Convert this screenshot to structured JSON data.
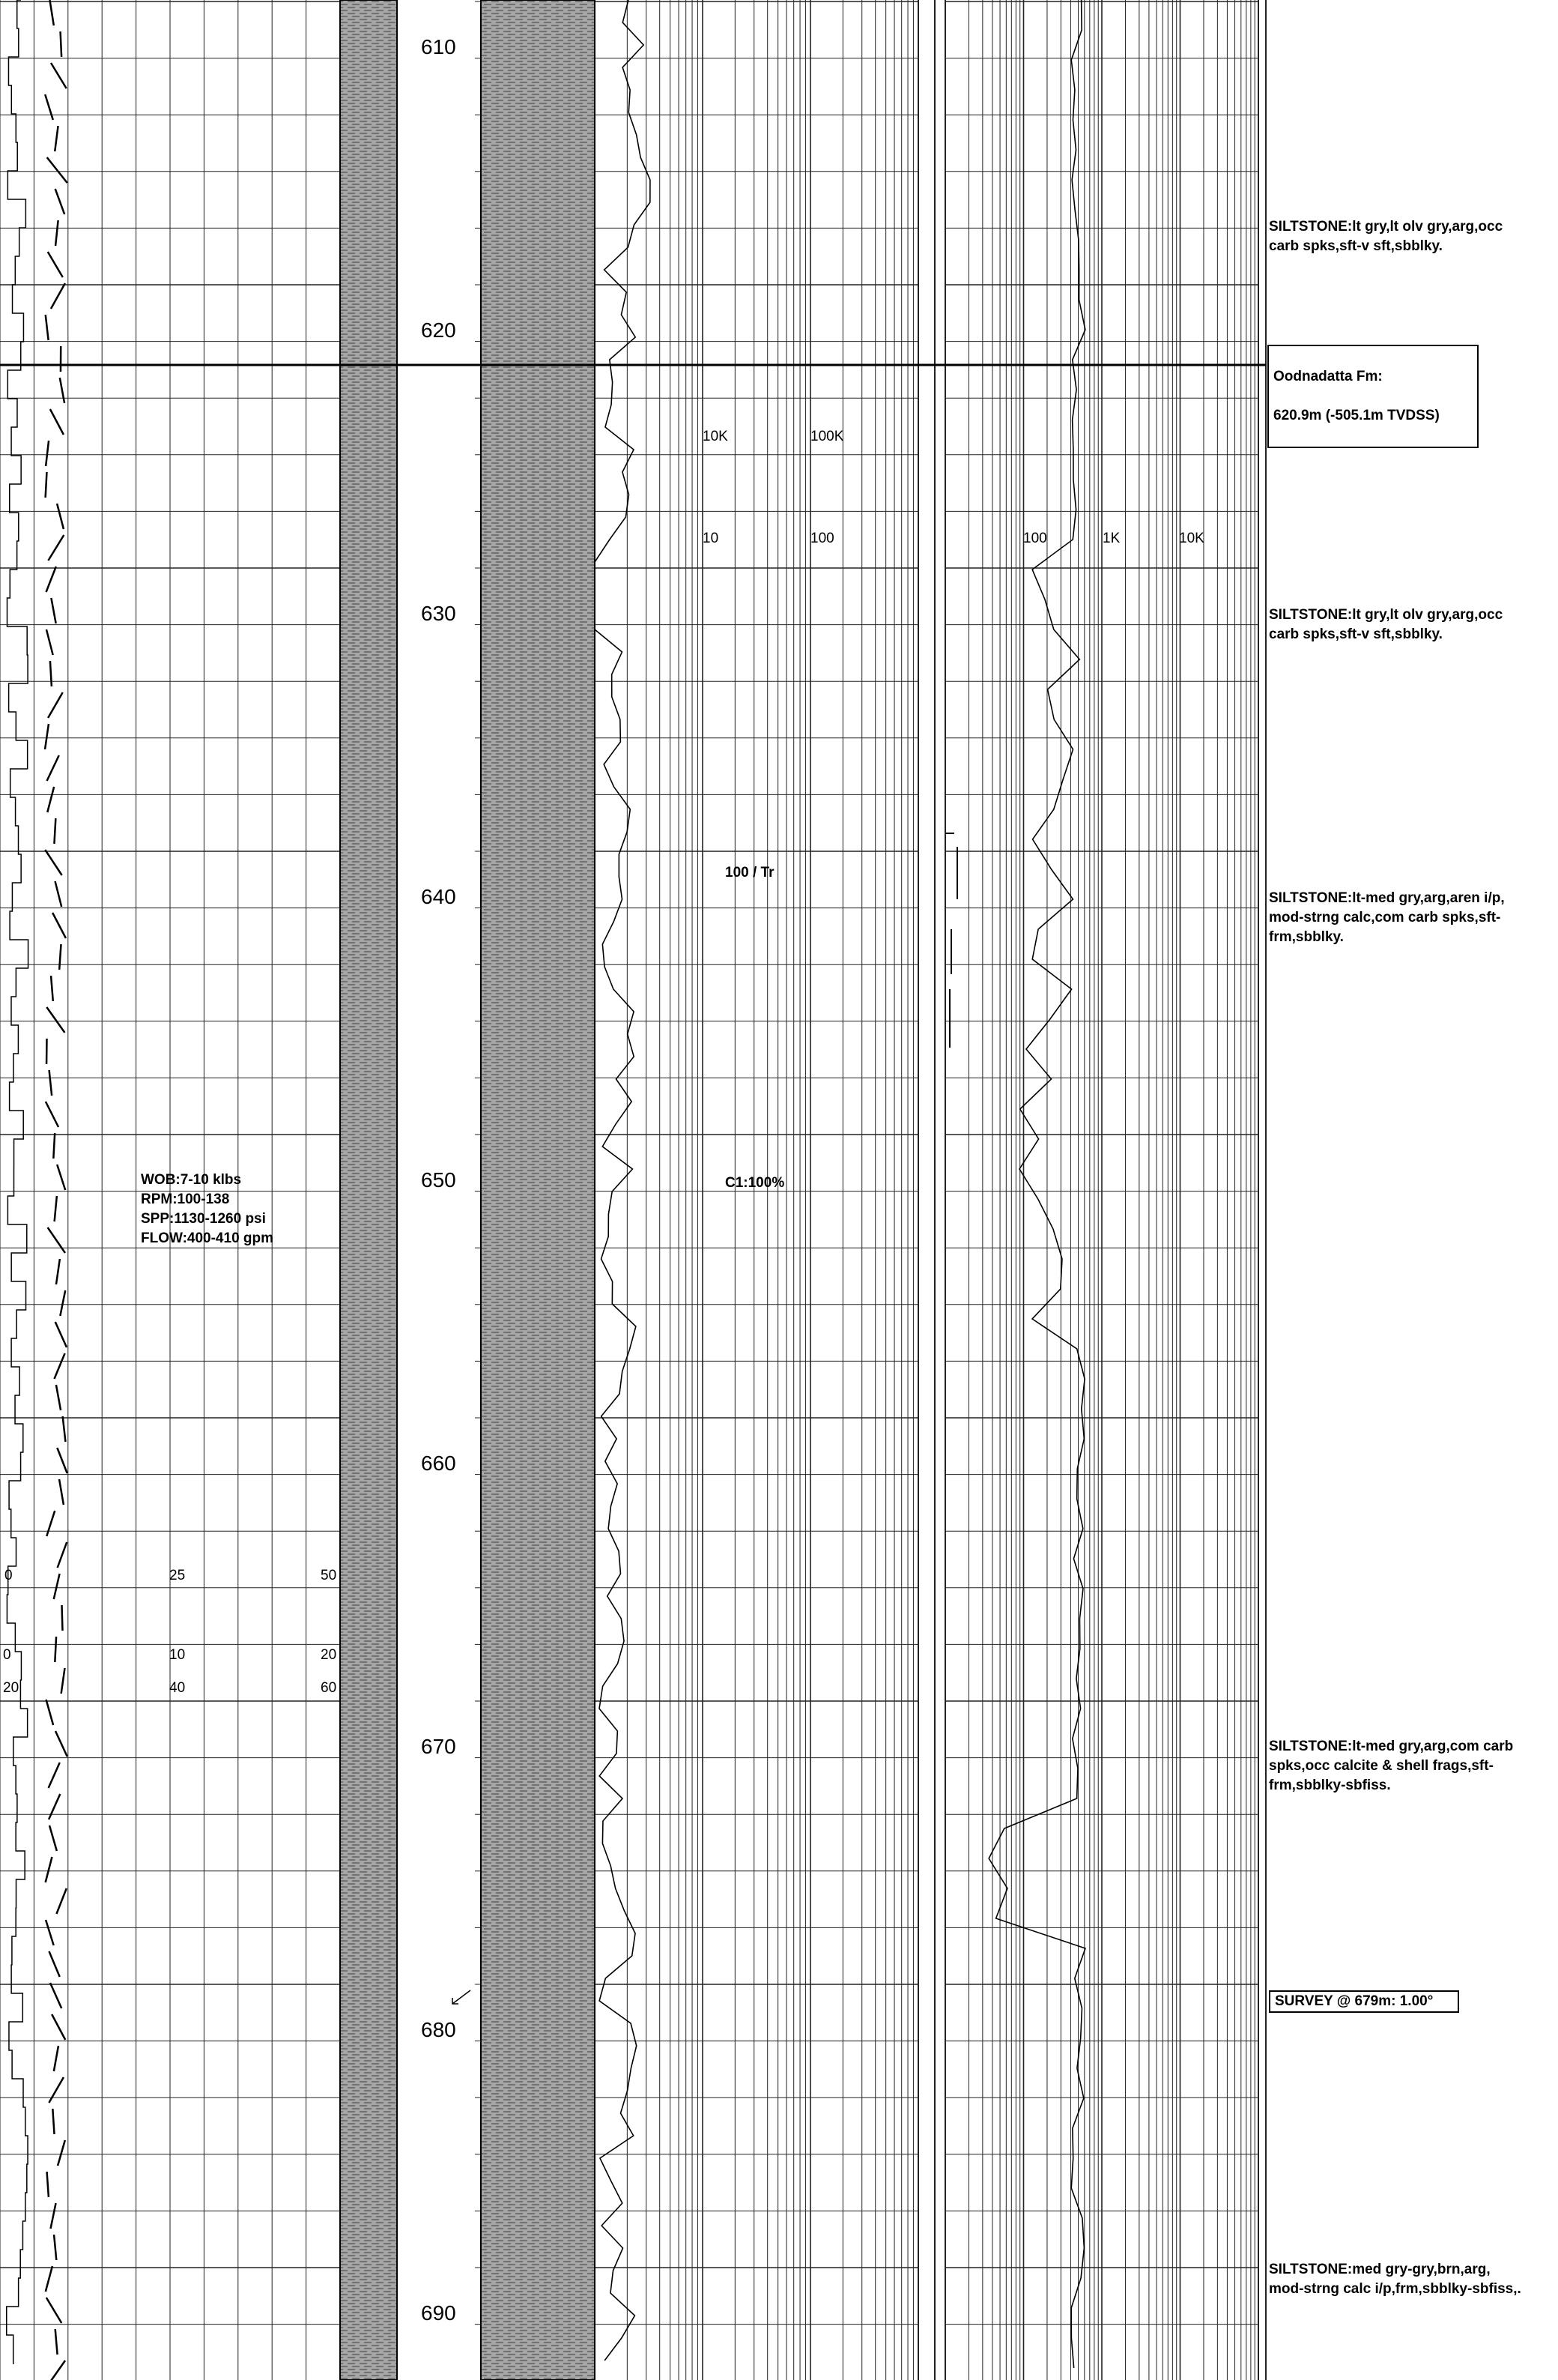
{
  "depth_labels": [
    "610",
    "620",
    "630",
    "640",
    "650",
    "660",
    "670",
    "680",
    "690"
  ],
  "track1_scale_row1": {
    "left": "0",
    "mid": "25",
    "right": "50"
  },
  "track1_scale_row2": {
    "left": "0",
    "mid": "10",
    "right": "20"
  },
  "track1_scale_row3": {
    "left": "20",
    "mid": "40",
    "right": "60"
  },
  "gas_scale_upper": {
    "a": "10K",
    "b": "100K"
  },
  "gas_scale_lower": {
    "a": "10",
    "b": "100"
  },
  "track3_scale": {
    "a": "100",
    "b": "1K",
    "c": "10K"
  },
  "gas_notes": {
    "ratio": "100 / Tr",
    "composition": "C1:100%"
  },
  "drilling_params": {
    "wob": "WOB:7-10 klbs",
    "rpm": "RPM:100-138",
    "spp": "SPP:1130-1260 psi",
    "flow": "FLOW:400-410 gpm"
  },
  "formation_top": {
    "line1": "Oodnadatta Fm:",
    "line2": "620.9m (-505.1m TVDSS)"
  },
  "survey": "SURVEY @ 679m: 1.00°",
  "descriptions": [
    "SILTSTONE:lt gry,lt olv gry,arg,occ\ncarb spks,sft-v sft,sbblky.",
    "SILTSTONE:lt gry,lt olv gry,arg,occ\ncarb spks,sft-v sft,sbblky.",
    "SILTSTONE:lt-med gry,arg,aren i/p,\nmod-strng calc,com carb spks,sft-\nfrm,sbblky.",
    "SILTSTONE:lt-med gry,arg,com carb\nspks,occ calcite & shell frags,sft-\nfrm,sbblky-sbfiss.",
    "SILTSTONE:med gry-gry,brn,arg,\nmod-strng calc i/p,frm,sbblky-sbfiss,."
  ],
  "colors": {
    "line": "#000000",
    "grid": "#3a3a3a",
    "lithology": "#9a9a9a"
  }
}
